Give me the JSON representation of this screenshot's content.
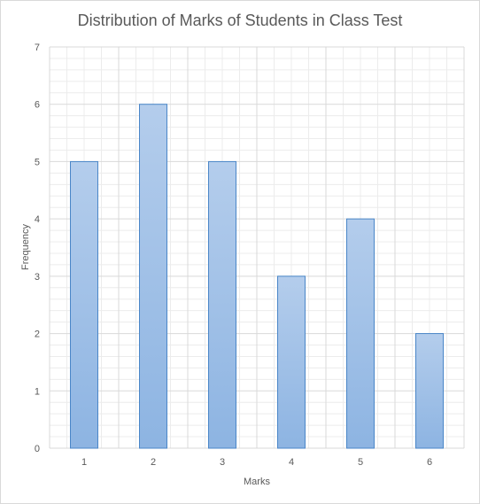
{
  "chart_data": {
    "type": "bar",
    "title": "Distribution of Marks of Students in Class Test",
    "xlabel": "Marks",
    "ylabel": "Frequency",
    "categories": [
      "1",
      "2",
      "3",
      "4",
      "5",
      "6"
    ],
    "values": [
      5,
      6,
      5,
      3,
      4,
      2
    ],
    "ylim": [
      0,
      7
    ],
    "yticks": [
      "0",
      "1",
      "2",
      "3",
      "4",
      "5",
      "6",
      "7"
    ],
    "grid": true,
    "legend": "none",
    "colors": {
      "bar_fill_top": "#b4cdec",
      "bar_fill_bottom": "#8db4e2",
      "bar_stroke": "#4a86c8",
      "grid_major": "#d9d9d9",
      "grid_minor": "#ececec",
      "text": "#595959"
    }
  }
}
